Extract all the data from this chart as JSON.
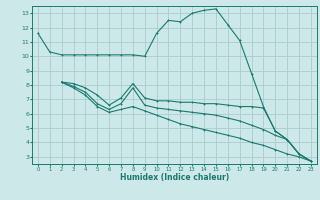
{
  "xlabel": "Humidex (Indice chaleur)",
  "bg_color": "#cce8e8",
  "grid_color": "#aacccc",
  "line_color": "#1a7a6e",
  "xlim": [
    -0.5,
    23.5
  ],
  "ylim": [
    2.5,
    13.5
  ],
  "yticks": [
    3,
    4,
    5,
    6,
    7,
    8,
    9,
    10,
    11,
    12,
    13
  ],
  "xticks": [
    0,
    1,
    2,
    3,
    4,
    5,
    6,
    7,
    8,
    9,
    10,
    11,
    12,
    13,
    14,
    15,
    16,
    17,
    18,
    19,
    20,
    21,
    22,
    23
  ],
  "line1_x": [
    0,
    1,
    2,
    3,
    4,
    5,
    6,
    7,
    8,
    9,
    10,
    11,
    12,
    13,
    14,
    15,
    16,
    17,
    18,
    19,
    20,
    21,
    22,
    23
  ],
  "line1_y": [
    11.6,
    10.3,
    10.1,
    10.1,
    10.1,
    10.1,
    10.1,
    10.1,
    10.1,
    10.0,
    11.6,
    12.5,
    12.4,
    13.0,
    13.2,
    13.3,
    12.2,
    11.1,
    8.8,
    6.5,
    4.8,
    4.2,
    3.2,
    2.7
  ],
  "line2_x": [
    2,
    3,
    4,
    5,
    6,
    7,
    8,
    9,
    10,
    11,
    12,
    13,
    14,
    15,
    16,
    17,
    18,
    19,
    20,
    21,
    22,
    23
  ],
  "line2_y": [
    8.2,
    8.1,
    7.8,
    7.3,
    6.6,
    7.1,
    8.1,
    7.1,
    6.9,
    6.9,
    6.8,
    6.8,
    6.7,
    6.7,
    6.6,
    6.5,
    6.5,
    6.4,
    4.8,
    4.2,
    3.2,
    2.7
  ],
  "line3_x": [
    2,
    3,
    4,
    5,
    6,
    7,
    8,
    9,
    10,
    11,
    12,
    13,
    14,
    15,
    16,
    17,
    18,
    19,
    20,
    21,
    22,
    23
  ],
  "line3_y": [
    8.2,
    7.9,
    7.5,
    6.7,
    6.3,
    6.7,
    7.8,
    6.6,
    6.4,
    6.3,
    6.2,
    6.1,
    6.0,
    5.9,
    5.7,
    5.5,
    5.2,
    4.9,
    4.5,
    4.2,
    3.2,
    2.7
  ],
  "line4_x": [
    2,
    3,
    4,
    5,
    6,
    7,
    8,
    9,
    10,
    11,
    12,
    13,
    14,
    15,
    16,
    17,
    18,
    19,
    20,
    21,
    22,
    23
  ],
  "line4_y": [
    8.2,
    7.8,
    7.3,
    6.5,
    6.1,
    6.3,
    6.5,
    6.2,
    5.9,
    5.6,
    5.3,
    5.1,
    4.9,
    4.7,
    4.5,
    4.3,
    4.0,
    3.8,
    3.5,
    3.2,
    3.0,
    2.7
  ]
}
